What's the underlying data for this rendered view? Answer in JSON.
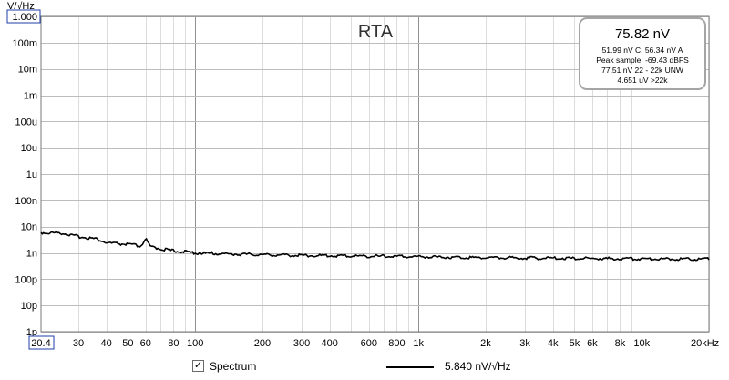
{
  "chart_data": {
    "type": "line",
    "title": "RTA",
    "y_unit": "V/√Hz",
    "x_unit": "Hz",
    "x_scale": "log",
    "y_scale": "log",
    "xlim": [
      20.4,
      20000
    ],
    "ylim": [
      1e-12,
      1
    ],
    "grid": true,
    "y_ticks": [
      {
        "value": 1,
        "label": "1.000"
      },
      {
        "value": 0.1,
        "label": "100m"
      },
      {
        "value": 0.01,
        "label": "10m"
      },
      {
        "value": 0.001,
        "label": "1m"
      },
      {
        "value": 0.0001,
        "label": "100u"
      },
      {
        "value": 1e-05,
        "label": "10u"
      },
      {
        "value": 1e-06,
        "label": "1u"
      },
      {
        "value": 1e-07,
        "label": "100n"
      },
      {
        "value": 1e-08,
        "label": "10n"
      },
      {
        "value": 1e-09,
        "label": "1n"
      },
      {
        "value": 1e-10,
        "label": "100p"
      },
      {
        "value": 1e-11,
        "label": "10p"
      },
      {
        "value": 1e-12,
        "label": "1p"
      }
    ],
    "x_ticks": [
      {
        "value": 20.4,
        "label": "20.4"
      },
      {
        "value": 30,
        "label": "30"
      },
      {
        "value": 40,
        "label": "40"
      },
      {
        "value": 50,
        "label": "50"
      },
      {
        "value": 60,
        "label": "60"
      },
      {
        "value": 80,
        "label": "80"
      },
      {
        "value": 100,
        "label": "100"
      },
      {
        "value": 200,
        "label": "200"
      },
      {
        "value": 300,
        "label": "300"
      },
      {
        "value": 400,
        "label": "400"
      },
      {
        "value": 600,
        "label": "600"
      },
      {
        "value": 800,
        "label": "800"
      },
      {
        "value": 1000,
        "label": "1k"
      },
      {
        "value": 2000,
        "label": "2k"
      },
      {
        "value": 3000,
        "label": "3k"
      },
      {
        "value": 4000,
        "label": "4k"
      },
      {
        "value": 5000,
        "label": "5k"
      },
      {
        "value": 6000,
        "label": "6k"
      },
      {
        "value": 8000,
        "label": "8k"
      },
      {
        "value": 10000,
        "label": "10k"
      },
      {
        "value": 20000,
        "label": "20kHz"
      }
    ],
    "series": [
      {
        "name": "Spectrum",
        "color": "#000000",
        "points": [
          [
            20.4,
            6e-09
          ],
          [
            22,
            5.7e-09
          ],
          [
            24,
            5.9e-09
          ],
          [
            26,
            5.5e-09
          ],
          [
            28,
            4.6e-09
          ],
          [
            30,
            4.2e-09
          ],
          [
            33,
            3.8e-09
          ],
          [
            36,
            3.4e-09
          ],
          [
            38,
            2.9e-09
          ],
          [
            40,
            2.4e-09
          ],
          [
            43,
            2.3e-09
          ],
          [
            46,
            2.2e-09
          ],
          [
            50,
            2.1e-09
          ],
          [
            53,
            2e-09
          ],
          [
            56,
            1.8e-09
          ],
          [
            58,
            2e-09
          ],
          [
            59,
            3e-09
          ],
          [
            60,
            3.5e-09
          ],
          [
            61,
            2.6e-09
          ],
          [
            63,
            1.7e-09
          ],
          [
            66,
            1.6e-09
          ],
          [
            70,
            1.45e-09
          ],
          [
            75,
            1.3e-09
          ],
          [
            80,
            1.2e-09
          ],
          [
            90,
            1.1e-09
          ],
          [
            100,
            1e-09
          ],
          [
            120,
            9.5e-10
          ],
          [
            150,
            9e-10
          ],
          [
            200,
            8.5e-10
          ],
          [
            300,
            8e-10
          ],
          [
            400,
            7.8e-10
          ],
          [
            500,
            7.6e-10
          ],
          [
            700,
            7.4e-10
          ],
          [
            1000,
            7.2e-10
          ],
          [
            1500,
            6.8e-10
          ],
          [
            2000,
            6.6e-10
          ],
          [
            3000,
            6.4e-10
          ],
          [
            5000,
            6.2e-10
          ],
          [
            7000,
            6e-10
          ],
          [
            10000,
            6e-10
          ],
          [
            15000,
            5.9e-10
          ],
          [
            20000,
            5.8e-10
          ]
        ]
      }
    ]
  },
  "readout": {
    "main": "75.82 nV",
    "line1": "51.99 nV C; 56.34 nV A",
    "line2": "Peak sample: -69.43 dBFS",
    "line3": "77.51 nV 22 - 22k UNW",
    "line4": "4.651 uV >22k"
  },
  "legend": {
    "checkbox_mark": "✓",
    "spectrum_label": "Spectrum",
    "trace_value": "5.840 nV/√Hz"
  }
}
